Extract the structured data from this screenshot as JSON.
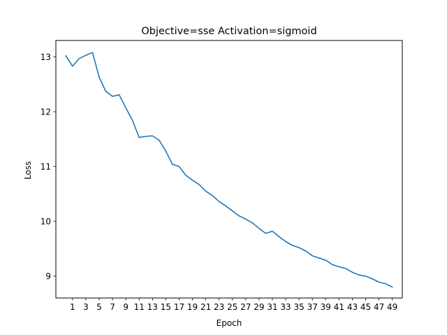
{
  "chart_data": {
    "type": "line",
    "title": "Objective=sse Activation=sigmoid",
    "xlabel": "Epoch",
    "ylabel": "Loss",
    "xlim": [
      -1.5,
      50.5
    ],
    "ylim": [
      8.6,
      13.3
    ],
    "xticks": [
      1,
      3,
      5,
      7,
      9,
      11,
      13,
      15,
      17,
      19,
      21,
      23,
      25,
      27,
      29,
      31,
      33,
      35,
      37,
      39,
      41,
      43,
      45,
      47,
      49
    ],
    "yticks": [
      9,
      10,
      11,
      12,
      13
    ],
    "grid": false,
    "series": [
      {
        "color": "#1f77b4",
        "x": [
          0,
          1,
          2,
          3,
          4,
          5,
          6,
          7,
          8,
          9,
          10,
          11,
          12,
          13,
          14,
          15,
          16,
          17,
          18,
          19,
          20,
          21,
          22,
          23,
          24,
          25,
          26,
          27,
          28,
          29,
          30,
          31,
          32,
          33,
          34,
          35,
          36,
          37,
          38,
          39,
          40,
          41,
          42,
          43,
          44,
          45,
          46,
          47,
          48,
          49
        ],
        "values": [
          13.02,
          12.83,
          12.97,
          13.03,
          13.08,
          12.63,
          12.37,
          12.28,
          12.31,
          12.07,
          11.84,
          11.53,
          11.55,
          11.56,
          11.48,
          11.28,
          11.04,
          11.0,
          10.84,
          10.75,
          10.67,
          10.55,
          10.47,
          10.36,
          10.28,
          10.19,
          10.1,
          10.04,
          9.97,
          9.87,
          9.78,
          9.82,
          9.72,
          9.63,
          9.56,
          9.52,
          9.46,
          9.37,
          9.33,
          9.29,
          9.21,
          9.17,
          9.14,
          9.07,
          9.02,
          9.0,
          8.95,
          8.89,
          8.86,
          8.8
        ]
      }
    ]
  }
}
